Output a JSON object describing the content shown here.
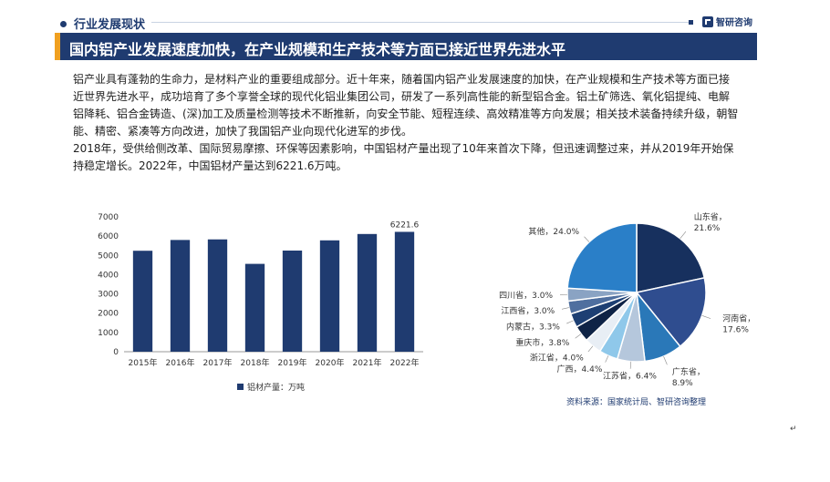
{
  "header": {
    "section_label": "行业发展现状",
    "brand_name": "智研咨询",
    "title": "国内铝产业发展速度加快，在产业规模和生产技术等方面已接近世界先进水平"
  },
  "body": {
    "paragraph_1": "铝产业具有蓬勃的生命力，是材料产业的重要组成部分。近十年来，随着国内铝产业发展速度的加快，在产业规模和生产技术等方面已接近世界先进水平，成功培育了多个享誉全球的现代化铝业集团公司，研发了一系列高性能的新型铝合金。铝土矿筛选、氧化铝提纯、电解铝降耗、铝合金铸造、(深)加工及质量检测等技术不断推新，向安全节能、短程连续、高效精准等方向发展；相关技术装备持续升级，朝智能、精密、紧凑等方向改进，加快了我国铝产业向现代化进军的步伐。",
    "paragraph_2": "2018年，受供给侧改革、国际贸易摩擦、环保等因素影响，中国铝材产量出现了10年来首次下降，但迅速调整过来，并从2019年开始保持稳定增长。2022年，中国铝材产量达到6221.6万吨。"
  },
  "source_note": "资料来源：国家统计局、智研咨询整理",
  "corner_mark": "↵",
  "colors": {
    "brand_navy": "#1f3b70",
    "accent_orange": "#f0a020",
    "bar": "#1f3b70"
  },
  "chart_data": [
    {
      "type": "bar",
      "categories": [
        "2015年",
        "2016年",
        "2017年",
        "2018年",
        "2019年",
        "2020年",
        "2021年",
        "2022年"
      ],
      "series": [
        {
          "name": "铝材产量：万吨",
          "values": [
            5240,
            5800,
            5830,
            4560,
            5250,
            5780,
            6110,
            6221.6
          ]
        }
      ],
      "data_labels": [
        {
          "category": "2022年",
          "text": "6221.6"
        }
      ],
      "ylim": [
        0,
        7000
      ],
      "yticks": [
        0,
        1000,
        2000,
        3000,
        4000,
        5000,
        6000,
        7000
      ],
      "grid": false,
      "legend_position": "bottom"
    },
    {
      "type": "pie",
      "slices": [
        {
          "label": "山东省",
          "value": 21.6,
          "value_text": "21.6%",
          "color": "#17305e"
        },
        {
          "label": "河南省",
          "value": 17.6,
          "value_text": "17.6%",
          "color": "#2f4d8f"
        },
        {
          "label": "广东省",
          "value": 8.9,
          "value_text": "8.9%",
          "color": "#2a78b8"
        },
        {
          "label": "江苏省",
          "value": 6.4,
          "value_text": "6.4%",
          "color": "#b5c7dc"
        },
        {
          "label": "广西",
          "value": 4.4,
          "value_text": "4.4%",
          "color": "#8fc8ea"
        },
        {
          "label": "浙江省",
          "value": 4.0,
          "value_text": "4.0%",
          "color": "#e8eef5"
        },
        {
          "label": "重庆市",
          "value": 3.8,
          "value_text": "3.8%",
          "color": "#0f2346"
        },
        {
          "label": "内蒙古",
          "value": 3.3,
          "value_text": "3.3%",
          "color": "#1d3f73"
        },
        {
          "label": "江西省",
          "value": 3.0,
          "value_text": "3.0%",
          "color": "#4f6f9f"
        },
        {
          "label": "四川省",
          "value": 3.0,
          "value_text": "3.0%",
          "color": "#8aa3c3"
        },
        {
          "label": "其他",
          "value": 24.0,
          "value_text": "24.0%",
          "color": "#2a7fc8"
        }
      ]
    }
  ]
}
